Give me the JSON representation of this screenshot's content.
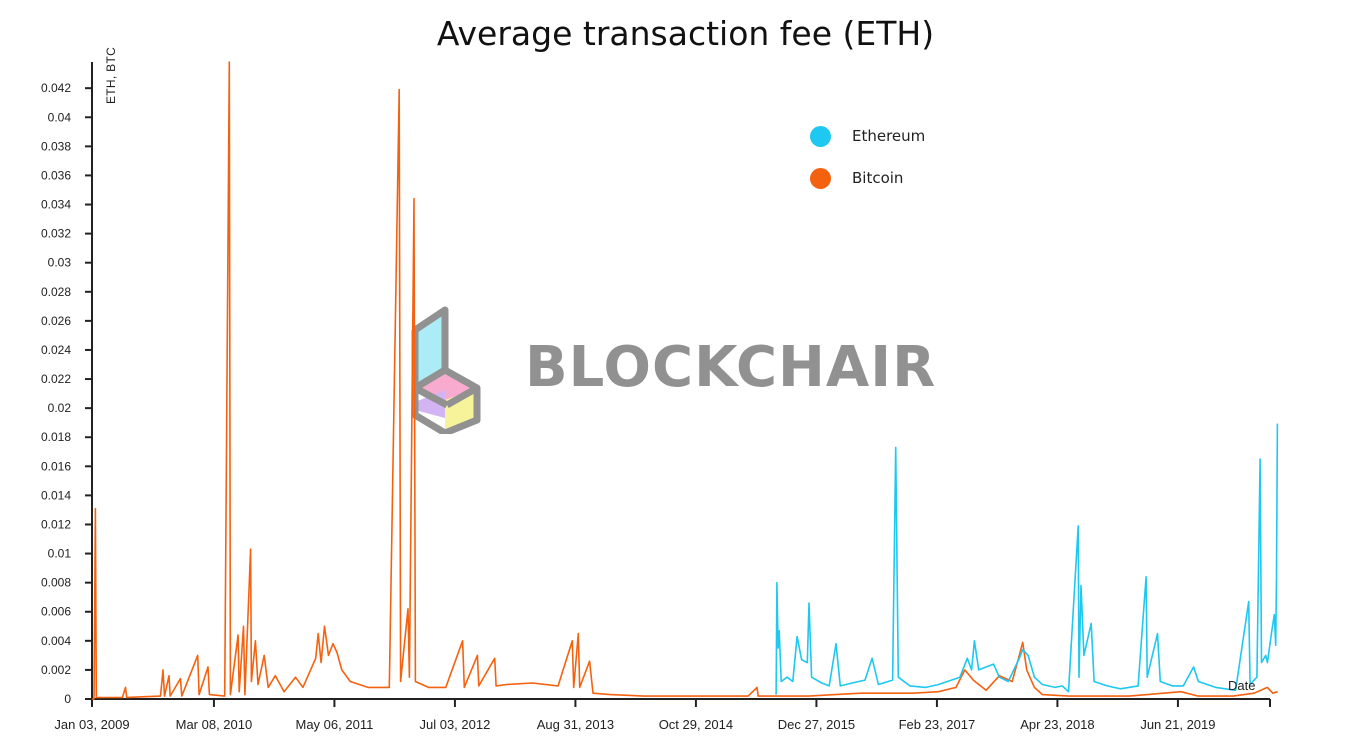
{
  "chart_data": {
    "type": "line",
    "title": "Average transaction fee (ETH)",
    "ylabel": "ETH, BTC",
    "xlabel": "Date",
    "ylim": [
      0,
      0.0438
    ],
    "xlim": [
      "2009-01-03",
      "2020-05-10"
    ],
    "y_ticks": [
      "0",
      "0.002",
      "0.004",
      "0.006",
      "0.008",
      "0.01",
      "0.012",
      "0.014",
      "0.016",
      "0.018",
      "0.02",
      "0.022",
      "0.024",
      "0.026",
      "0.028",
      "0.03",
      "0.032",
      "0.034",
      "0.036",
      "0.038",
      "0.04",
      "0.042"
    ],
    "x_ticks": [
      "Jan 03, 2009",
      "Mar 08, 2010",
      "May 06, 2011",
      "Jul 03, 2012",
      "Aug 31, 2013",
      "Oct 29, 2014",
      "Dec 27, 2015",
      "Feb 23, 2017",
      "Apr 23, 2018",
      "Jun 21, 2019"
    ],
    "legend_position": "top-right",
    "grid": false,
    "series": [
      {
        "name": "Ethereum",
        "color": "#1ec8f0",
        "points": [
          [
            "2015-08-07",
            0.0003
          ],
          [
            "2015-08-10",
            0.008
          ],
          [
            "2015-08-14",
            0.0035
          ],
          [
            "2015-08-18",
            0.0047
          ],
          [
            "2015-08-25",
            0.0012
          ],
          [
            "2015-09-15",
            0.0015
          ],
          [
            "2015-10-05",
            0.0012
          ],
          [
            "2015-10-20",
            0.0043
          ],
          [
            "2015-11-05",
            0.0027
          ],
          [
            "2015-11-25",
            0.0025
          ],
          [
            "2015-12-01",
            0.0066
          ],
          [
            "2015-12-10",
            0.0015
          ],
          [
            "2016-01-15",
            0.0011
          ],
          [
            "2016-02-10",
            0.0009
          ],
          [
            "2016-03-05",
            0.0038
          ],
          [
            "2016-03-20",
            0.0009
          ],
          [
            "2016-05-01",
            0.0011
          ],
          [
            "2016-06-15",
            0.0013
          ],
          [
            "2016-07-10",
            0.0028
          ],
          [
            "2016-08-01",
            0.001
          ],
          [
            "2016-09-20",
            0.0013
          ],
          [
            "2016-10-01",
            0.0173
          ],
          [
            "2016-10-10",
            0.0015
          ],
          [
            "2016-11-20",
            0.0009
          ],
          [
            "2017-01-15",
            0.0008
          ],
          [
            "2017-03-01",
            0.001
          ],
          [
            "2017-04-01",
            0.0012
          ],
          [
            "2017-05-15",
            0.0015
          ],
          [
            "2017-06-10",
            0.0028
          ],
          [
            "2017-06-25",
            0.002
          ],
          [
            "2017-07-05",
            0.004
          ],
          [
            "2017-07-20",
            0.002
          ],
          [
            "2017-09-10",
            0.0024
          ],
          [
            "2017-10-01",
            0.0015
          ],
          [
            "2017-11-01",
            0.0012
          ],
          [
            "2017-12-10",
            0.0028
          ],
          [
            "2017-12-22",
            0.0034
          ],
          [
            "2018-01-10",
            0.003
          ],
          [
            "2018-02-01",
            0.0015
          ],
          [
            "2018-03-01",
            0.001
          ],
          [
            "2018-04-15",
            0.0008
          ],
          [
            "2018-05-10",
            0.0009
          ],
          [
            "2018-06-01",
            0.0005
          ],
          [
            "2018-07-05",
            0.0119
          ],
          [
            "2018-07-08",
            0.0015
          ],
          [
            "2018-07-15",
            0.0078
          ],
          [
            "2018-07-25",
            0.003
          ],
          [
            "2018-08-20",
            0.0052
          ],
          [
            "2018-08-30",
            0.0012
          ],
          [
            "2018-10-15",
            0.0009
          ],
          [
            "2018-12-01",
            0.0007
          ],
          [
            "2019-02-01",
            0.0009
          ],
          [
            "2019-03-01",
            0.0084
          ],
          [
            "2019-03-05",
            0.0015
          ],
          [
            "2019-04-10",
            0.0045
          ],
          [
            "2019-04-20",
            0.0012
          ],
          [
            "2019-06-01",
            0.0009
          ],
          [
            "2019-07-10",
            0.0009
          ],
          [
            "2019-08-15",
            0.0022
          ],
          [
            "2019-09-01",
            0.0012
          ],
          [
            "2019-11-01",
            0.0008
          ],
          [
            "2020-01-10",
            0.0006
          ],
          [
            "2020-02-25",
            0.0067
          ],
          [
            "2020-03-01",
            0.001
          ],
          [
            "2020-03-25",
            0.0015
          ],
          [
            "2020-04-05",
            0.0165
          ],
          [
            "2020-04-10",
            0.0025
          ],
          [
            "2020-04-25",
            0.003
          ],
          [
            "2020-05-01",
            0.0025
          ],
          [
            "2020-05-15",
            0.0045
          ],
          [
            "2020-05-25",
            0.0058
          ],
          [
            "2020-05-30",
            0.0037
          ],
          [
            "2020-06-02",
            0.0085
          ],
          [
            "2020-06-05",
            0.0189
          ],
          [
            "2020-06-06",
            0.0189
          ]
        ]
      },
      {
        "name": "Bitcoin",
        "color": "#f46210",
        "points": [
          [
            "2009-01-03",
            0.0
          ],
          [
            "2009-01-10",
            0.0
          ],
          [
            "2009-01-15",
            0.0131
          ],
          [
            "2009-01-18",
            0.0001
          ],
          [
            "2009-04-20",
            0.0001
          ],
          [
            "2009-05-01",
            0.0008
          ],
          [
            "2009-05-05",
            0.0001
          ],
          [
            "2009-09-01",
            0.0002
          ],
          [
            "2009-09-10",
            0.002
          ],
          [
            "2009-09-15",
            0.0002
          ],
          [
            "2009-10-01",
            0.0016
          ],
          [
            "2009-10-05",
            0.0002
          ],
          [
            "2009-11-10",
            0.0014
          ],
          [
            "2009-11-15",
            0.0002
          ],
          [
            "2010-01-10",
            0.003
          ],
          [
            "2010-01-15",
            0.0003
          ],
          [
            "2010-02-15",
            0.0022
          ],
          [
            "2010-02-20",
            0.0003
          ],
          [
            "2010-04-15",
            0.0002
          ],
          [
            "2010-05-01",
            0.0438
          ],
          [
            "2010-05-05",
            0.0003
          ],
          [
            "2010-06-01",
            0.0044
          ],
          [
            "2010-06-05",
            0.0005
          ],
          [
            "2010-06-20",
            0.005
          ],
          [
            "2010-06-25",
            0.0003
          ],
          [
            "2010-07-15",
            0.0103
          ],
          [
            "2010-07-18",
            0.0012
          ],
          [
            "2010-08-01",
            0.004
          ],
          [
            "2010-08-10",
            0.001
          ],
          [
            "2010-09-01",
            0.003
          ],
          [
            "2010-09-15",
            0.0008
          ],
          [
            "2010-10-10",
            0.0016
          ],
          [
            "2010-11-10",
            0.0005
          ],
          [
            "2010-12-20",
            0.0015
          ],
          [
            "2011-01-15",
            0.0008
          ],
          [
            "2011-03-01",
            0.0028
          ],
          [
            "2011-03-10",
            0.0045
          ],
          [
            "2011-03-20",
            0.0025
          ],
          [
            "2011-04-01",
            0.005
          ],
          [
            "2011-04-15",
            0.003
          ],
          [
            "2011-05-01",
            0.0038
          ],
          [
            "2011-05-15",
            0.0032
          ],
          [
            "2011-06-01",
            0.002
          ],
          [
            "2011-07-01",
            0.0012
          ],
          [
            "2011-09-01",
            0.0008
          ],
          [
            "2011-11-15",
            0.0008
          ],
          [
            "2011-12-20",
            0.0419
          ],
          [
            "2011-12-25",
            0.0012
          ],
          [
            "2012-01-20",
            0.0062
          ],
          [
            "2012-01-25",
            0.0015
          ],
          [
            "2012-02-10",
            0.0344
          ],
          [
            "2012-02-15",
            0.0012
          ],
          [
            "2012-04-01",
            0.0008
          ],
          [
            "2012-06-01",
            0.0008
          ],
          [
            "2012-07-30",
            0.004
          ],
          [
            "2012-08-05",
            0.0008
          ],
          [
            "2012-09-20",
            0.003
          ],
          [
            "2012-09-25",
            0.0009
          ],
          [
            "2012-11-20",
            0.0028
          ],
          [
            "2012-11-25",
            0.0009
          ],
          [
            "2013-01-01",
            0.001
          ],
          [
            "2013-04-01",
            0.0011
          ],
          [
            "2013-07-01",
            0.0009
          ],
          [
            "2013-08-20",
            0.004
          ],
          [
            "2013-08-25",
            0.0008
          ],
          [
            "2013-09-10",
            0.0045
          ],
          [
            "2013-09-15",
            0.0008
          ],
          [
            "2013-10-20",
            0.0026
          ],
          [
            "2013-11-01",
            0.0004
          ],
          [
            "2014-01-01",
            0.0003
          ],
          [
            "2014-05-01",
            0.0002
          ],
          [
            "2014-10-01",
            0.0002
          ],
          [
            "2015-01-01",
            0.0002
          ],
          [
            "2015-05-01",
            0.0002
          ],
          [
            "2015-06-01",
            0.0008
          ],
          [
            "2015-06-05",
            0.0002
          ],
          [
            "2015-09-01",
            0.0002
          ],
          [
            "2015-12-01",
            0.0002
          ],
          [
            "2016-03-01",
            0.0003
          ],
          [
            "2016-06-01",
            0.0004
          ],
          [
            "2016-09-01",
            0.0004
          ],
          [
            "2016-12-01",
            0.0004
          ],
          [
            "2017-03-01",
            0.0005
          ],
          [
            "2017-05-01",
            0.0008
          ],
          [
            "2017-06-01",
            0.002
          ],
          [
            "2017-07-01",
            0.0013
          ],
          [
            "2017-08-15",
            0.0006
          ],
          [
            "2017-10-01",
            0.0016
          ],
          [
            "2017-11-15",
            0.0012
          ],
          [
            "2017-12-10",
            0.003
          ],
          [
            "2017-12-22",
            0.0039
          ],
          [
            "2018-01-05",
            0.002
          ],
          [
            "2018-02-01",
            0.0008
          ],
          [
            "2018-03-01",
            0.0003
          ],
          [
            "2018-06-01",
            0.0002
          ],
          [
            "2018-10-01",
            0.0002
          ],
          [
            "2019-01-01",
            0.0002
          ],
          [
            "2019-05-01",
            0.0004
          ],
          [
            "2019-07-01",
            0.0005
          ],
          [
            "2019-09-01",
            0.0002
          ],
          [
            "2020-01-01",
            0.0002
          ],
          [
            "2020-03-15",
            0.0004
          ],
          [
            "2020-05-01",
            0.0008
          ],
          [
            "2020-05-20",
            0.0004
          ],
          [
            "2020-06-06",
            0.0005
          ]
        ]
      }
    ]
  },
  "watermark": {
    "text": "BLOCKCHAIR"
  },
  "colors": {
    "axis": "#222222",
    "ethereum": "#1ec8f0",
    "bitcoin": "#f46210",
    "watermark": "#6d6d6d"
  }
}
